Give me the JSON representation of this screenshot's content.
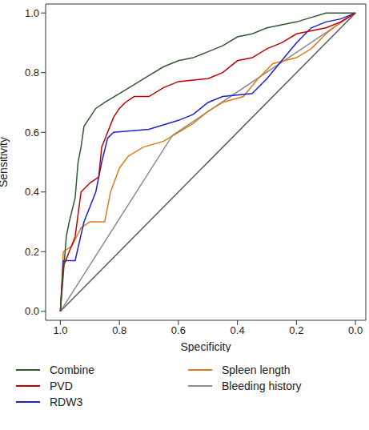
{
  "chart_data": {
    "type": "line",
    "x_label": "Specificity",
    "y_label": "Sensitivity",
    "xlim": [
      1.05,
      -0.035
    ],
    "ylim": [
      -0.03,
      1.03
    ],
    "xticks": [
      {
        "value": 1,
        "label": "1.0"
      },
      {
        "value": 0.8,
        "label": "0.8"
      },
      {
        "value": 0.6,
        "label": "0.6"
      },
      {
        "value": 0.4,
        "label": "0.4"
      },
      {
        "value": 0.2,
        "label": "0.2"
      },
      {
        "value": 0,
        "label": "0.0"
      }
    ],
    "yticks": [
      {
        "value": 0,
        "label": "0.0"
      },
      {
        "value": 0.2,
        "label": "0.2"
      },
      {
        "value": 0.4,
        "label": "0.4"
      },
      {
        "value": 0.6,
        "label": "0.6"
      },
      {
        "value": 0.8,
        "label": "0.8"
      },
      {
        "value": 1,
        "label": "1.0"
      }
    ],
    "grid": false,
    "legend": "bottom",
    "series": [
      {
        "color": "#5a5a5a",
        "line_style": "solid",
        "x": [
          1,
          0
        ],
        "values": [
          0,
          1
        ]
      },
      {
        "name": "Bleeding history",
        "color": "#8c8c8c",
        "line_style": "solid",
        "x": [
          1,
          0.62,
          0
        ],
        "values": [
          0,
          0.59,
          1
        ]
      },
      {
        "name": "Spleen length",
        "color": "#e07b1a",
        "line_style": "solid",
        "x": [
          1,
          0.99,
          0.96,
          0.93,
          0.9,
          0.85,
          0.83,
          0.8,
          0.77,
          0.72,
          0.65,
          0.6,
          0.55,
          0.5,
          0.45,
          0.38,
          0.33,
          0.28,
          0.2,
          0.15,
          0.1,
          0.05,
          0
        ],
        "values": [
          0,
          0.2,
          0.22,
          0.28,
          0.3,
          0.3,
          0.4,
          0.48,
          0.52,
          0.55,
          0.57,
          0.6,
          0.63,
          0.67,
          0.7,
          0.72,
          0.78,
          0.83,
          0.85,
          0.88,
          0.93,
          0.97,
          1
        ]
      },
      {
        "name": "RDW3",
        "color": "#1f1fd6",
        "line_style": "solid",
        "x": [
          1,
          0.99,
          0.95,
          0.92,
          0.88,
          0.86,
          0.84,
          0.82,
          0.7,
          0.6,
          0.55,
          0.5,
          0.45,
          0.35,
          0.3,
          0.25,
          0.2,
          0.15,
          0.1,
          0.05,
          0
        ],
        "values": [
          0,
          0.17,
          0.17,
          0.3,
          0.4,
          0.5,
          0.58,
          0.6,
          0.61,
          0.64,
          0.66,
          0.7,
          0.72,
          0.73,
          0.78,
          0.84,
          0.9,
          0.95,
          0.97,
          0.98,
          1
        ]
      },
      {
        "name": "PVD",
        "color": "#c00000",
        "line_style": "solid",
        "x": [
          1,
          0.99,
          0.97,
          0.95,
          0.93,
          0.9,
          0.87,
          0.86,
          0.84,
          0.82,
          0.8,
          0.78,
          0.75,
          0.7,
          0.65,
          0.6,
          0.5,
          0.45,
          0.4,
          0.35,
          0.3,
          0.25,
          0.2,
          0.1,
          0.05,
          0
        ],
        "values": [
          0,
          0.15,
          0.2,
          0.25,
          0.4,
          0.43,
          0.45,
          0.55,
          0.6,
          0.65,
          0.68,
          0.7,
          0.72,
          0.72,
          0.75,
          0.77,
          0.78,
          0.8,
          0.84,
          0.85,
          0.88,
          0.9,
          0.93,
          0.95,
          0.97,
          1
        ]
      },
      {
        "name": "Combine",
        "color": "#2e5a2e",
        "line_style": "solid",
        "x": [
          1,
          0.98,
          0.97,
          0.95,
          0.94,
          0.93,
          0.92,
          0.9,
          0.88,
          0.85,
          0.8,
          0.75,
          0.7,
          0.65,
          0.6,
          0.55,
          0.5,
          0.45,
          0.4,
          0.35,
          0.3,
          0.2,
          0.1,
          0
        ],
        "values": [
          0,
          0.25,
          0.3,
          0.38,
          0.5,
          0.55,
          0.62,
          0.65,
          0.68,
          0.7,
          0.73,
          0.76,
          0.79,
          0.82,
          0.84,
          0.85,
          0.87,
          0.89,
          0.92,
          0.93,
          0.95,
          0.97,
          1,
          1
        ]
      }
    ]
  }
}
